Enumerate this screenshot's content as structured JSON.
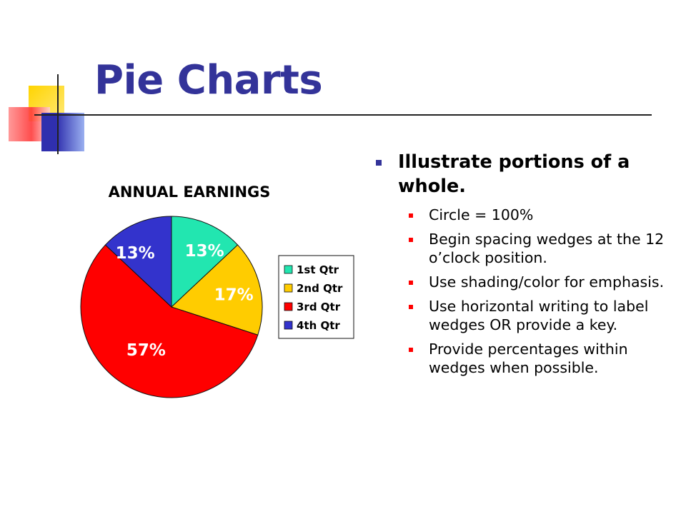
{
  "slide": {
    "title": "Pie Charts",
    "bullet": "Illustrate portions of a whole.",
    "sub_bullets": [
      "Circle = 100%",
      "Begin spacing wedges at the 12 o’clock position.",
      "Use shading/color for emphasis.",
      "Use horizontal writing to label wedges OR provide a key.",
      "Provide percentages within wedges when possible."
    ]
  },
  "colors": {
    "title": "#333399",
    "bullet_main": "#333399",
    "bullet_sub": "#ff0000"
  },
  "chart_data": {
    "type": "pie",
    "title": "ANNUAL EARNINGS",
    "start_angle": "12 o'clock",
    "direction": "clockwise",
    "categories": [
      "1st Qtr",
      "2nd Qtr",
      "3rd Qtr",
      "4th Qtr"
    ],
    "values": [
      13,
      17,
      57,
      13
    ],
    "labels": [
      "13%",
      "17%",
      "57%",
      "13%"
    ],
    "colors": [
      "#22e6b0",
      "#ffcc00",
      "#ff0000",
      "#3333cc"
    ],
    "label_colors": [
      "#ffffff",
      "#ffffff",
      "#ffffff",
      "#ffffff"
    ],
    "legend_position": "right"
  }
}
